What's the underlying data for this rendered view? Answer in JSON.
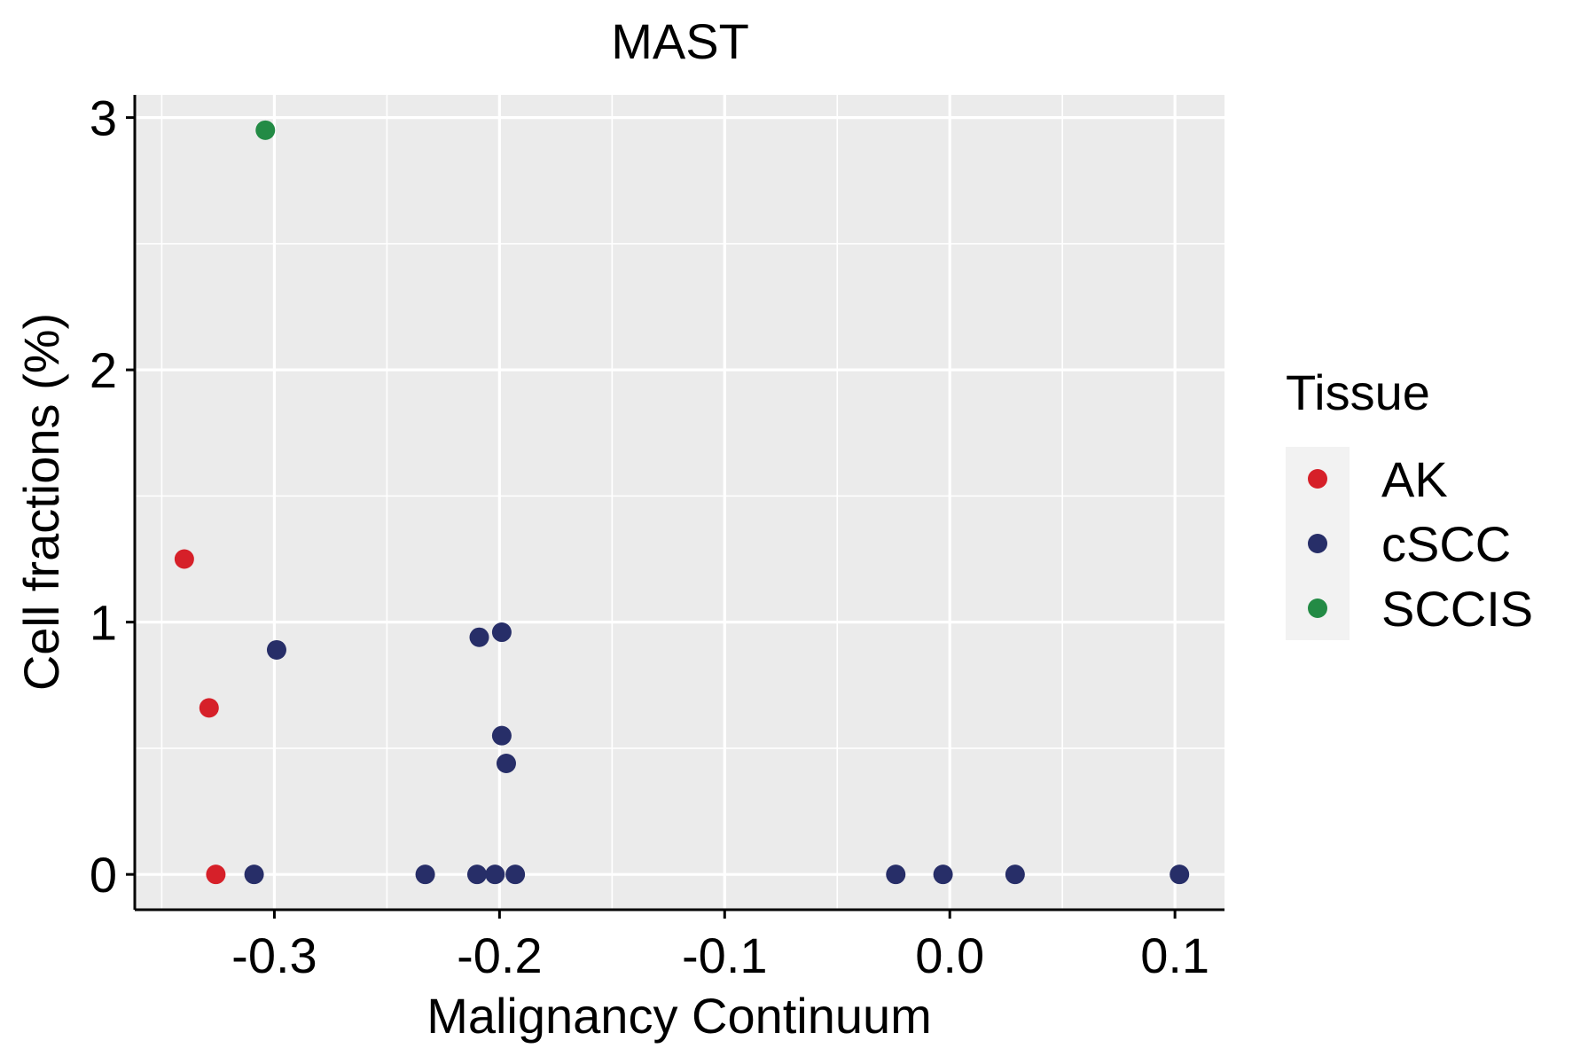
{
  "chart_data": {
    "type": "scatter",
    "title": "MAST",
    "xlabel": "Malignancy Continuum",
    "ylabel": "Cell fractions (%)",
    "xlim": [
      -0.362,
      0.122
    ],
    "ylim": [
      -0.14,
      3.09
    ],
    "xticks": [
      -0.3,
      -0.2,
      -0.1,
      0.0,
      0.1
    ],
    "xtick_labels": [
      "-0.3",
      "-0.2",
      "-0.1",
      "0.0",
      "0.1"
    ],
    "yticks": [
      0,
      1,
      2,
      3
    ],
    "ytick_labels": [
      "0",
      "1",
      "2",
      "3"
    ],
    "grid": true,
    "legend": {
      "title": "Tissue",
      "position": "right"
    },
    "colors": {
      "AK": "#d62029",
      "cSCC": "#272e68",
      "SCCIS": "#238b45",
      "panel": "#ebebeb",
      "legend_key_bg": "#f2f2f2"
    },
    "series": [
      {
        "name": "AK",
        "color": "#d62029",
        "points": [
          {
            "x": -0.34,
            "y": 1.25
          },
          {
            "x": -0.329,
            "y": 0.66
          },
          {
            "x": -0.326,
            "y": 0.0
          }
        ]
      },
      {
        "name": "cSCC",
        "color": "#272e68",
        "points": [
          {
            "x": -0.299,
            "y": 0.89
          },
          {
            "x": -0.309,
            "y": 0.0
          },
          {
            "x": -0.233,
            "y": 0.0
          },
          {
            "x": -0.21,
            "y": 0.0
          },
          {
            "x": -0.209,
            "y": 0.94
          },
          {
            "x": -0.202,
            "y": 0.0
          },
          {
            "x": -0.199,
            "y": 0.96
          },
          {
            "x": -0.199,
            "y": 0.55
          },
          {
            "x": -0.197,
            "y": 0.44
          },
          {
            "x": -0.193,
            "y": 0.0
          },
          {
            "x": -0.024,
            "y": 0.0
          },
          {
            "x": -0.003,
            "y": 0.0
          },
          {
            "x": 0.029,
            "y": 0.0
          },
          {
            "x": 0.102,
            "y": 0.0
          }
        ]
      },
      {
        "name": "SCCIS",
        "color": "#238b45",
        "points": [
          {
            "x": -0.304,
            "y": 2.95
          }
        ]
      }
    ]
  }
}
